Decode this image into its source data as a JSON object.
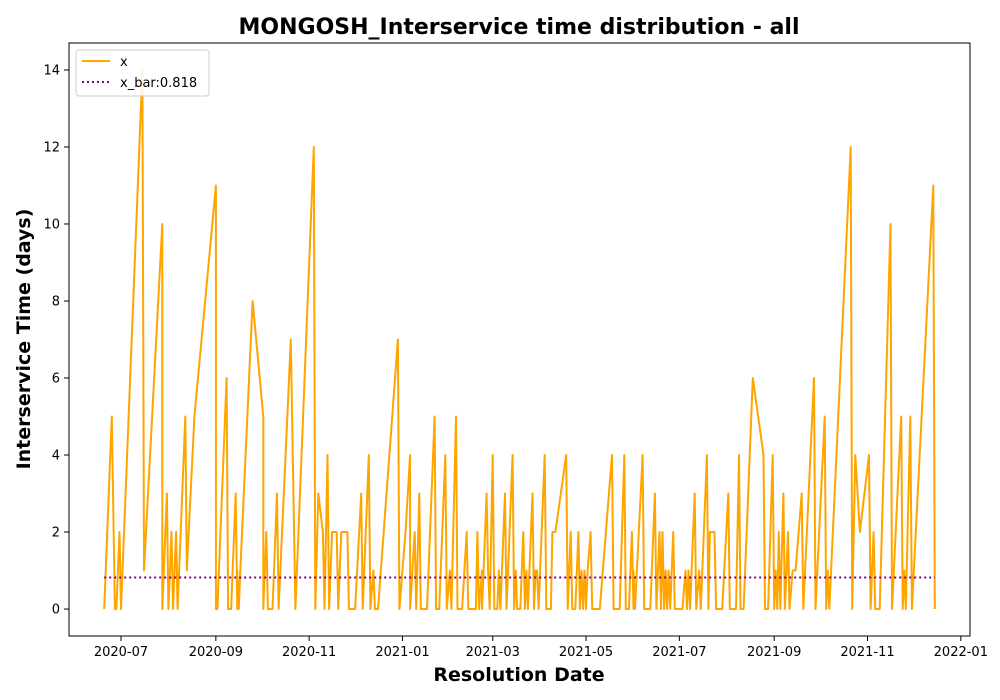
{
  "chart_data": {
    "type": "line",
    "title": "MONGOSH_Interservice time distribution - all",
    "xlabel": "Resolution Date",
    "ylabel": "Interservice Time (days)",
    "x_range": [
      "2020-05-28",
      "2022-01-07"
    ],
    "ylim": [
      -0.7,
      14.7
    ],
    "x_ticks": [
      "2020-07-01",
      "2020-09-01",
      "2020-11-01",
      "2021-01-01",
      "2021-03-01",
      "2021-05-01",
      "2021-07-01",
      "2021-09-01",
      "2021-11-01",
      "2022-01-01"
    ],
    "x_tick_labels": [
      "2020-07",
      "2020-09",
      "2020-11",
      "2021-01",
      "2021-03",
      "2021-05",
      "2021-07",
      "2021-09",
      "2021-11",
      "2022-01"
    ],
    "y_ticks": [
      0,
      2,
      4,
      6,
      8,
      10,
      12,
      14
    ],
    "y_tick_labels": [
      "0",
      "2",
      "4",
      "6",
      "8",
      "10",
      "12",
      "14"
    ],
    "grid": false,
    "legend": {
      "placement": "upper-left",
      "entries": [
        {
          "label": "x",
          "color": "#ffa500",
          "style": "solid"
        },
        {
          "label": "x_bar:0.818",
          "color": "#800080",
          "style": "dotted"
        }
      ]
    },
    "series": [
      {
        "name": "x",
        "color": "#ffa500",
        "style": "solid",
        "points": [
          [
            "2020-06-20",
            0
          ],
          [
            "2020-06-25",
            5
          ],
          [
            "2020-06-27",
            0
          ],
          [
            "2020-06-28",
            0
          ],
          [
            "2020-06-30",
            2
          ],
          [
            "2020-07-01",
            0
          ],
          [
            "2020-07-15",
            14
          ],
          [
            "2020-07-16",
            1
          ],
          [
            "2020-07-28",
            10
          ],
          [
            "2020-07-28",
            0
          ],
          [
            "2020-07-31",
            3
          ],
          [
            "2020-08-01",
            0
          ],
          [
            "2020-08-03",
            2
          ],
          [
            "2020-08-04",
            0
          ],
          [
            "2020-08-06",
            2
          ],
          [
            "2020-08-07",
            0
          ],
          [
            "2020-08-12",
            5
          ],
          [
            "2020-08-13",
            1
          ],
          [
            "2020-08-18",
            5
          ],
          [
            "2020-09-01",
            11
          ],
          [
            "2020-09-01",
            0
          ],
          [
            "2020-09-02",
            0
          ],
          [
            "2020-09-08",
            6
          ],
          [
            "2020-09-09",
            0
          ],
          [
            "2020-09-11",
            0
          ],
          [
            "2020-09-14",
            3
          ],
          [
            "2020-09-15",
            0
          ],
          [
            "2020-09-15",
            1
          ],
          [
            "2020-09-16",
            0
          ],
          [
            "2020-09-17",
            1
          ],
          [
            "2020-09-25",
            8
          ],
          [
            "2020-10-02",
            5
          ],
          [
            "2020-10-02",
            0
          ],
          [
            "2020-10-04",
            2
          ],
          [
            "2020-10-05",
            0
          ],
          [
            "2020-10-08",
            0
          ],
          [
            "2020-10-11",
            3
          ],
          [
            "2020-10-12",
            0
          ],
          [
            "2020-10-20",
            7
          ],
          [
            "2020-10-23",
            0
          ],
          [
            "2020-11-04",
            12
          ],
          [
            "2020-11-05",
            0
          ],
          [
            "2020-11-07",
            3
          ],
          [
            "2020-11-10",
            2
          ],
          [
            "2020-11-11",
            0
          ],
          [
            "2020-11-13",
            4
          ],
          [
            "2020-11-14",
            0
          ],
          [
            "2020-11-16",
            2
          ],
          [
            "2020-11-19",
            2
          ],
          [
            "2020-11-20",
            0
          ],
          [
            "2020-11-22",
            2
          ],
          [
            "2020-11-26",
            2
          ],
          [
            "2020-11-27",
            0
          ],
          [
            "2020-12-01",
            0
          ],
          [
            "2020-12-05",
            3
          ],
          [
            "2020-12-06",
            0
          ],
          [
            "2020-12-10",
            4
          ],
          [
            "2020-12-11",
            0
          ],
          [
            "2020-12-13",
            1
          ],
          [
            "2020-12-14",
            0
          ],
          [
            "2020-12-16",
            0
          ],
          [
            "2020-12-29",
            7
          ],
          [
            "2020-12-30",
            0
          ],
          [
            "2021-01-03",
            2
          ],
          [
            "2021-01-06",
            4
          ],
          [
            "2021-01-06",
            0
          ],
          [
            "2021-01-09",
            2
          ],
          [
            "2021-01-10",
            0
          ],
          [
            "2021-01-12",
            3
          ],
          [
            "2021-01-13",
            0
          ],
          [
            "2021-01-17",
            0
          ],
          [
            "2021-01-22",
            5
          ],
          [
            "2021-01-23",
            0
          ],
          [
            "2021-01-25",
            0
          ],
          [
            "2021-01-29",
            4
          ],
          [
            "2021-01-30",
            0
          ],
          [
            "2021-02-01",
            1
          ],
          [
            "2021-02-02",
            0
          ],
          [
            "2021-02-05",
            5
          ],
          [
            "2021-02-06",
            0
          ],
          [
            "2021-02-09",
            0
          ],
          [
            "2021-02-12",
            2
          ],
          [
            "2021-02-13",
            0
          ],
          [
            "2021-02-18",
            0
          ],
          [
            "2021-02-19",
            2
          ],
          [
            "2021-02-20",
            0
          ],
          [
            "2021-02-22",
            1
          ],
          [
            "2021-02-22",
            0
          ],
          [
            "2021-02-23",
            1
          ],
          [
            "2021-02-25",
            3
          ],
          [
            "2021-02-26",
            1
          ],
          [
            "2021-02-27",
            0
          ],
          [
            "2021-03-01",
            4
          ],
          [
            "2021-03-02",
            0
          ],
          [
            "2021-03-04",
            0
          ],
          [
            "2021-03-05",
            1
          ],
          [
            "2021-03-06",
            0
          ],
          [
            "2021-03-09",
            3
          ],
          [
            "2021-03-10",
            0
          ],
          [
            "2021-03-14",
            4
          ],
          [
            "2021-03-15",
            0
          ],
          [
            "2021-03-16",
            1
          ],
          [
            "2021-03-17",
            0
          ],
          [
            "2021-03-19",
            0
          ],
          [
            "2021-03-21",
            2
          ],
          [
            "2021-03-22",
            0
          ],
          [
            "2021-03-23",
            1
          ],
          [
            "2021-03-24",
            0
          ],
          [
            "2021-03-27",
            3
          ],
          [
            "2021-03-28",
            0
          ],
          [
            "2021-03-29",
            1
          ],
          [
            "2021-03-30",
            1
          ],
          [
            "2021-03-31",
            0
          ],
          [
            "2021-04-04",
            4
          ],
          [
            "2021-04-05",
            0
          ],
          [
            "2021-04-08",
            0
          ],
          [
            "2021-04-09",
            2
          ],
          [
            "2021-04-11",
            2
          ],
          [
            "2021-04-18",
            4
          ],
          [
            "2021-04-19",
            0
          ],
          [
            "2021-04-21",
            2
          ],
          [
            "2021-04-22",
            0
          ],
          [
            "2021-04-24",
            0
          ],
          [
            "2021-04-26",
            2
          ],
          [
            "2021-04-27",
            0
          ],
          [
            "2021-04-28",
            1
          ],
          [
            "2021-04-29",
            0
          ],
          [
            "2021-04-30",
            1
          ],
          [
            "2021-05-01",
            0
          ],
          [
            "2021-05-02",
            1
          ],
          [
            "2021-05-04",
            2
          ],
          [
            "2021-05-05",
            0
          ],
          [
            "2021-05-10",
            0
          ],
          [
            "2021-05-14",
            2
          ],
          [
            "2021-05-18",
            4
          ],
          [
            "2021-05-19",
            0
          ],
          [
            "2021-05-23",
            0
          ],
          [
            "2021-05-26",
            4
          ],
          [
            "2021-05-27",
            0
          ],
          [
            "2021-05-29",
            0
          ],
          [
            "2021-05-31",
            2
          ],
          [
            "2021-06-01",
            0
          ],
          [
            "2021-06-01",
            1
          ],
          [
            "2021-06-02",
            0
          ],
          [
            "2021-06-07",
            4
          ],
          [
            "2021-06-08",
            0
          ],
          [
            "2021-06-12",
            0
          ],
          [
            "2021-06-15",
            3
          ],
          [
            "2021-06-16",
            0
          ],
          [
            "2021-06-18",
            2
          ],
          [
            "2021-06-19",
            0
          ],
          [
            "2021-06-20",
            2
          ],
          [
            "2021-06-21",
            0
          ],
          [
            "2021-06-22",
            1
          ],
          [
            "2021-06-23",
            0
          ],
          [
            "2021-06-24",
            1
          ],
          [
            "2021-06-25",
            0
          ],
          [
            "2021-06-27",
            2
          ],
          [
            "2021-06-28",
            0
          ],
          [
            "2021-07-01",
            0
          ],
          [
            "2021-07-03",
            0
          ],
          [
            "2021-07-05",
            1
          ],
          [
            "2021-07-06",
            0
          ],
          [
            "2021-07-07",
            1
          ],
          [
            "2021-07-08",
            0
          ],
          [
            "2021-07-09",
            1
          ],
          [
            "2021-07-11",
            3
          ],
          [
            "2021-07-12",
            0
          ],
          [
            "2021-07-14",
            1
          ],
          [
            "2021-07-15",
            0
          ],
          [
            "2021-07-19",
            4
          ],
          [
            "2021-07-20",
            0
          ],
          [
            "2021-07-21",
            2
          ],
          [
            "2021-07-24",
            2
          ],
          [
            "2021-07-25",
            0
          ],
          [
            "2021-07-29",
            0
          ],
          [
            "2021-08-02",
            3
          ],
          [
            "2021-08-03",
            0
          ],
          [
            "2021-08-07",
            0
          ],
          [
            "2021-08-09",
            4
          ],
          [
            "2021-08-10",
            0
          ],
          [
            "2021-08-12",
            0
          ],
          [
            "2021-08-18",
            6
          ],
          [
            "2021-08-25",
            4
          ],
          [
            "2021-08-26",
            0
          ],
          [
            "2021-08-28",
            0
          ],
          [
            "2021-08-31",
            4
          ],
          [
            "2021-09-01",
            0
          ],
          [
            "2021-09-02",
            1
          ],
          [
            "2021-09-03",
            0
          ],
          [
            "2021-09-04",
            2
          ],
          [
            "2021-09-05",
            0
          ],
          [
            "2021-09-07",
            3
          ],
          [
            "2021-09-08",
            0
          ],
          [
            "2021-09-10",
            2
          ],
          [
            "2021-09-11",
            0
          ],
          [
            "2021-09-13",
            1
          ],
          [
            "2021-09-15",
            1
          ],
          [
            "2021-09-19",
            3
          ],
          [
            "2021-09-20",
            0
          ],
          [
            "2021-09-27",
            6
          ],
          [
            "2021-09-28",
            0
          ],
          [
            "2021-10-04",
            5
          ],
          [
            "2021-10-05",
            0
          ],
          [
            "2021-10-06",
            1
          ],
          [
            "2021-10-07",
            0
          ],
          [
            "2021-10-21",
            12
          ],
          [
            "2021-10-22",
            0
          ],
          [
            "2021-10-24",
            4
          ],
          [
            "2021-10-27",
            2
          ],
          [
            "2021-11-02",
            4
          ],
          [
            "2021-11-03",
            0
          ],
          [
            "2021-11-05",
            2
          ],
          [
            "2021-11-06",
            0
          ],
          [
            "2021-11-09",
            0
          ],
          [
            "2021-11-16",
            10
          ],
          [
            "2021-11-17",
            0
          ],
          [
            "2021-11-23",
            5
          ],
          [
            "2021-11-24",
            0
          ],
          [
            "2021-11-25",
            1
          ],
          [
            "2021-11-26",
            0
          ],
          [
            "2021-11-29",
            5
          ],
          [
            "2021-11-30",
            0
          ],
          [
            "2021-12-14",
            11
          ],
          [
            "2021-12-15",
            0
          ]
        ]
      },
      {
        "name": "x_bar:0.818",
        "color": "#800080",
        "style": "dotted",
        "points": [
          [
            "2020-06-20",
            0.818
          ],
          [
            "2021-12-15",
            0.818
          ]
        ]
      }
    ]
  }
}
